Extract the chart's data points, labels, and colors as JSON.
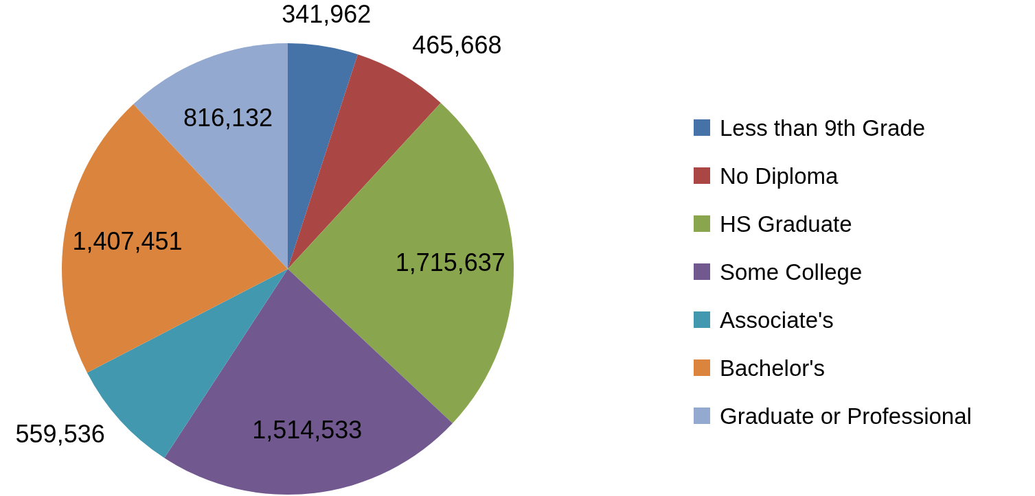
{
  "chart_data": {
    "type": "pie",
    "categories": [
      "Less than 9th Grade",
      "No Diploma",
      "HS Graduate",
      "Some College",
      "Associate's",
      "Bachelor's",
      "Graduate or Professional"
    ],
    "values": [
      341962,
      465668,
      1715637,
      1514533,
      559536,
      1407451,
      816132
    ],
    "colors": [
      "#4572a7",
      "#aa4643",
      "#89a54e",
      "#71588f",
      "#4198af",
      "#db843d",
      "#93a9cf"
    ],
    "value_labels": [
      "341,962",
      "465,668",
      "1,715,637",
      "1,514,533",
      "559,536",
      "1,407,451",
      "816,132"
    ],
    "legend": "right"
  }
}
